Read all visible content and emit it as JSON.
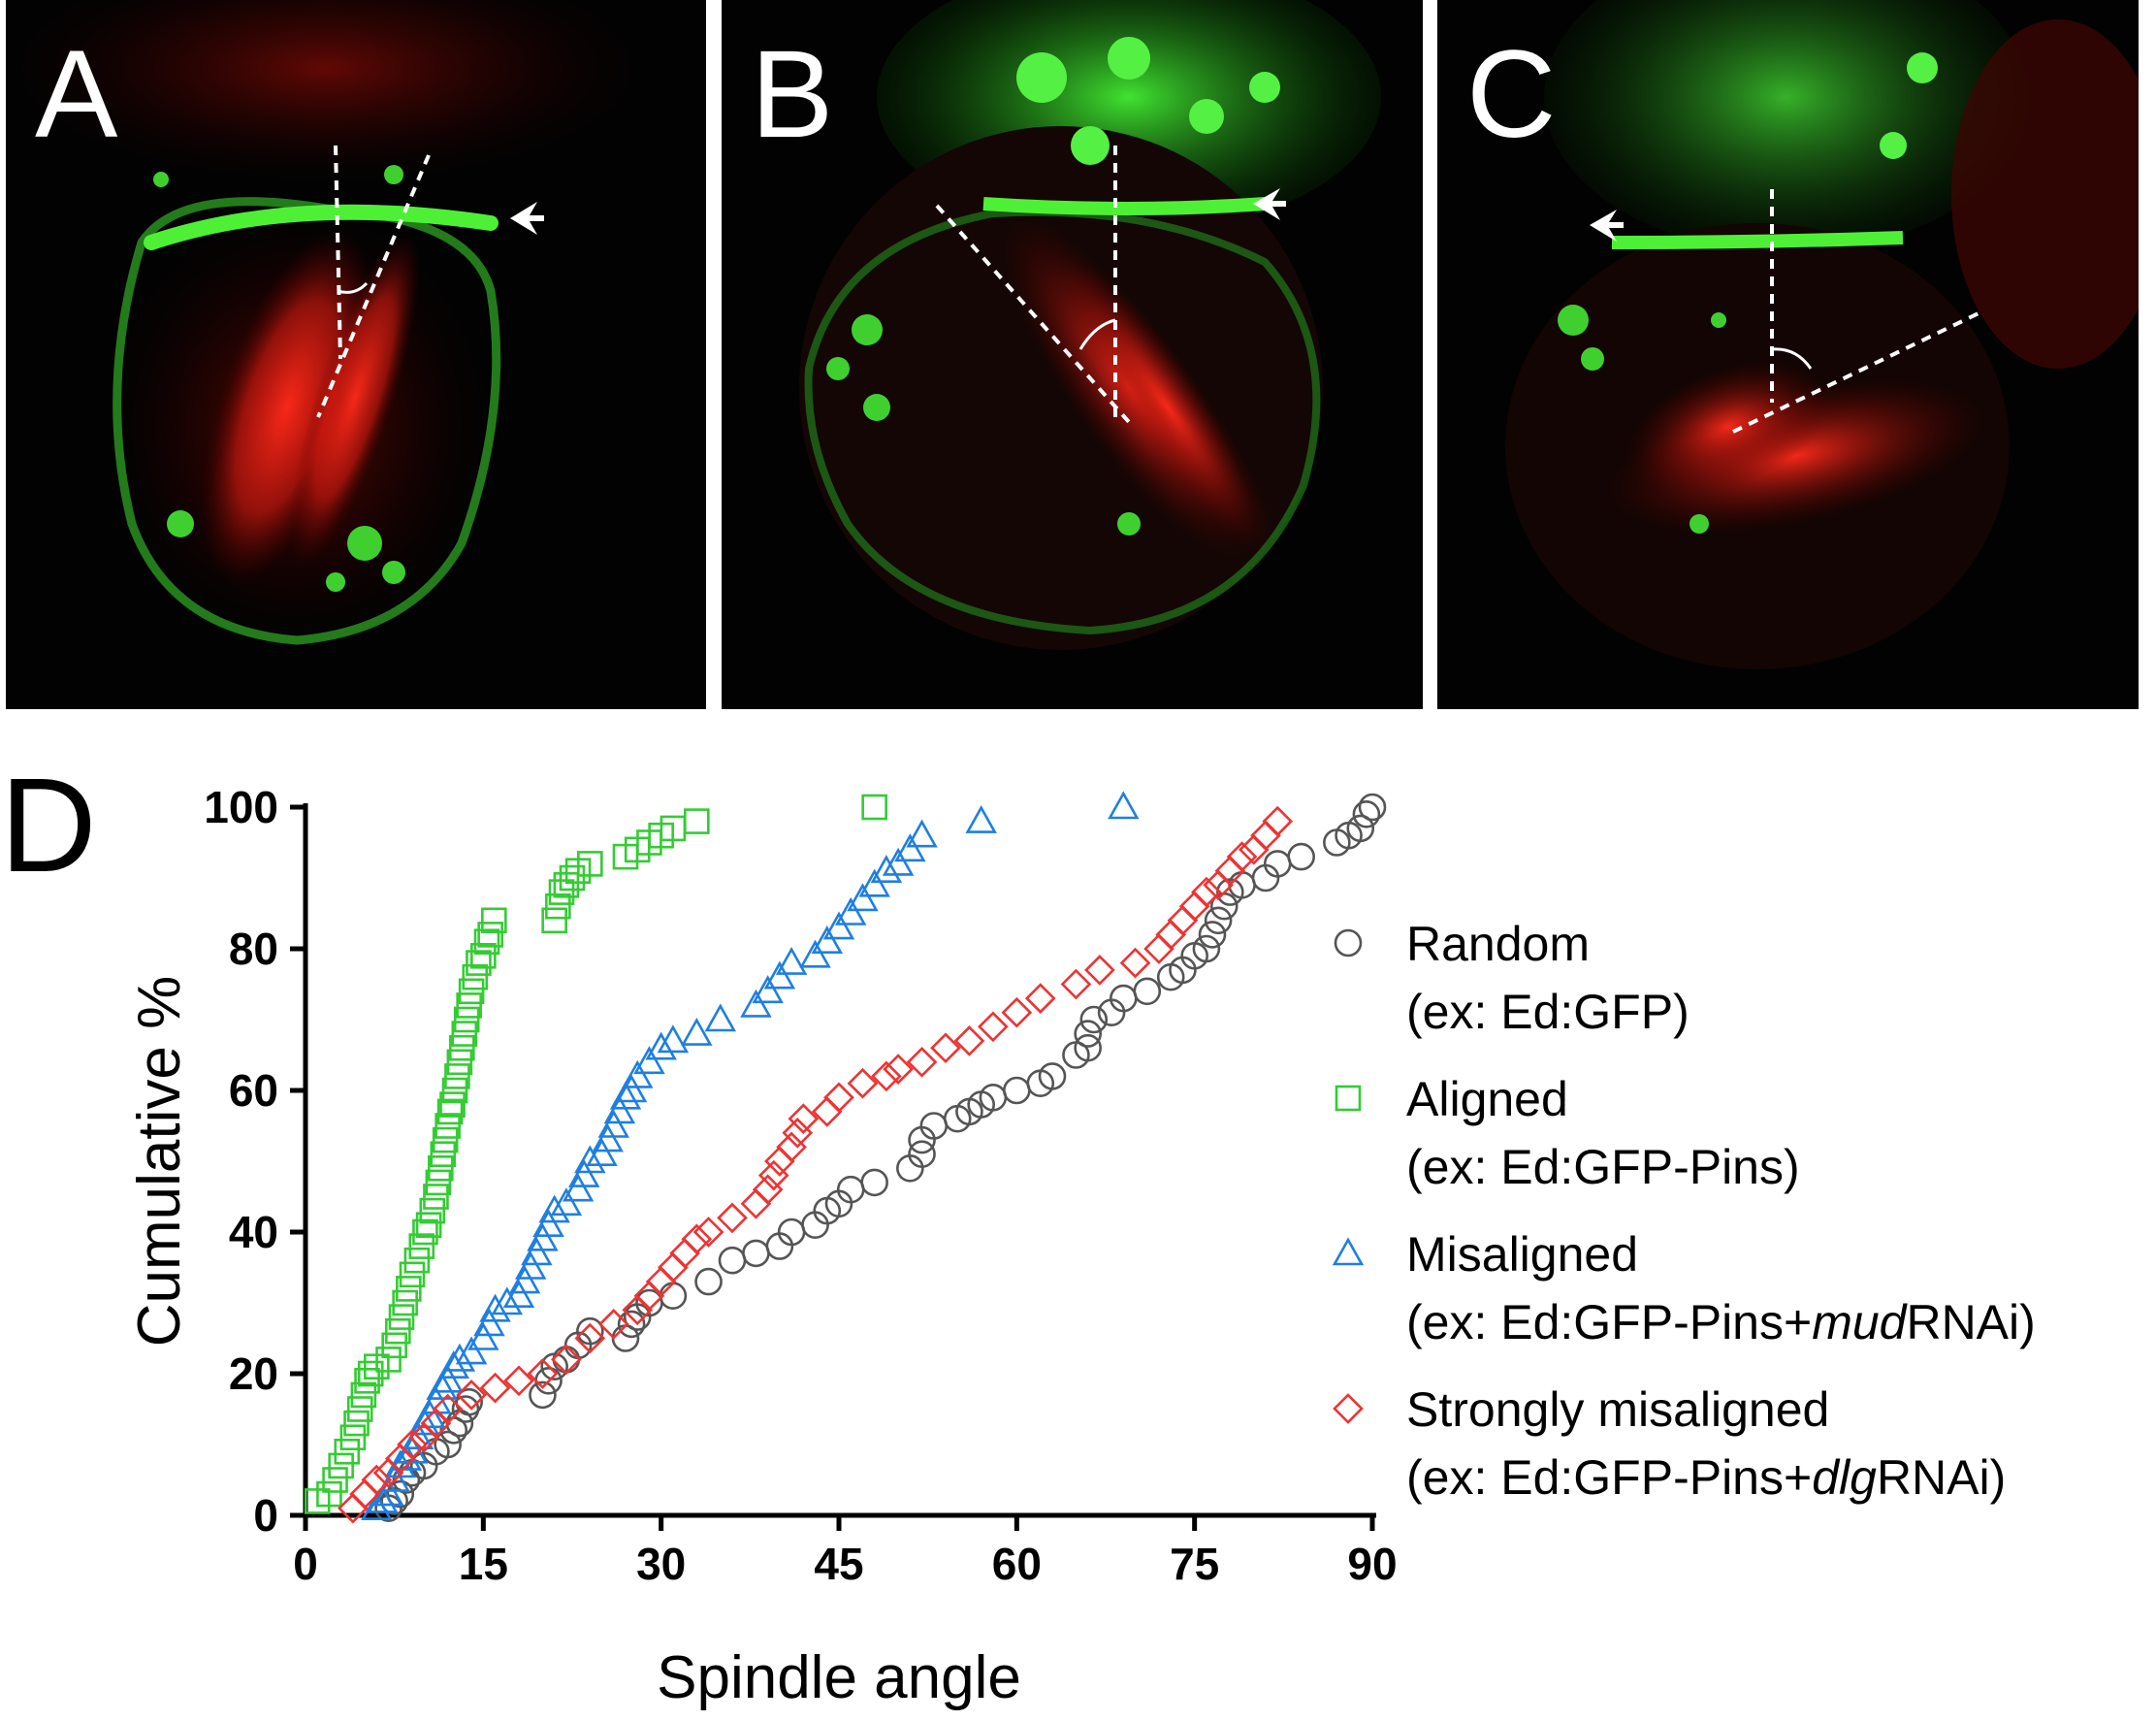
{
  "panels": [
    {
      "label": "A"
    },
    {
      "label": "B"
    },
    {
      "label": "C"
    }
  ],
  "figure_label": "D",
  "colors": {
    "random": "#555555",
    "aligned": "#33cc33",
    "misaligned": "#1f7fe0",
    "strong": "#ee3333"
  },
  "chart_data": {
    "type": "scatter",
    "title": "",
    "xlabel": "Spindle angle",
    "ylabel": "Cumulative %",
    "xlim": [
      0,
      90
    ],
    "ylim": [
      0,
      100
    ],
    "xticks": [
      "0",
      "15",
      "30",
      "45",
      "60",
      "75",
      "90"
    ],
    "yticks": [
      "0",
      "20",
      "40",
      "60",
      "80",
      "100"
    ],
    "grid": false,
    "legend_position": "right",
    "series": [
      {
        "name": "Random",
        "sub": "(ex: Ed:GFP)",
        "marker": "circle",
        "color": "#555555",
        "points": [
          [
            7,
            1
          ],
          [
            7.5,
            2
          ],
          [
            8,
            3
          ],
          [
            8.5,
            5
          ],
          [
            9,
            6
          ],
          [
            10,
            7
          ],
          [
            11,
            9
          ],
          [
            12,
            10
          ],
          [
            12.5,
            12
          ],
          [
            13,
            13
          ],
          [
            13.5,
            15
          ],
          [
            13.8,
            16
          ],
          [
            20,
            17
          ],
          [
            20.5,
            19
          ],
          [
            21,
            21
          ],
          [
            22,
            22
          ],
          [
            23,
            24
          ],
          [
            24,
            26
          ],
          [
            27,
            25
          ],
          [
            27.5,
            27
          ],
          [
            28,
            28
          ],
          [
            29,
            30
          ],
          [
            31,
            31
          ],
          [
            34,
            33
          ],
          [
            36,
            36
          ],
          [
            38,
            37
          ],
          [
            40,
            38
          ],
          [
            41,
            40
          ],
          [
            43,
            41
          ],
          [
            44,
            43
          ],
          [
            45,
            44
          ],
          [
            46,
            46
          ],
          [
            48,
            47
          ],
          [
            51,
            49
          ],
          [
            52,
            51
          ],
          [
            52,
            53
          ],
          [
            53,
            55
          ],
          [
            55,
            56
          ],
          [
            56,
            57
          ],
          [
            57,
            58
          ],
          [
            58,
            59
          ],
          [
            60,
            60
          ],
          [
            62,
            61
          ],
          [
            63,
            62
          ],
          [
            65,
            65
          ],
          [
            66,
            66
          ],
          [
            66,
            68
          ],
          [
            66.5,
            70
          ],
          [
            68,
            71
          ],
          [
            69,
            73
          ],
          [
            71,
            74
          ],
          [
            73,
            76
          ],
          [
            74,
            77
          ],
          [
            75,
            79
          ],
          [
            76,
            80
          ],
          [
            76.5,
            82
          ],
          [
            77,
            84
          ],
          [
            77.5,
            86
          ],
          [
            78,
            88
          ],
          [
            79,
            89
          ],
          [
            81,
            90
          ],
          [
            82,
            92
          ],
          [
            84,
            93
          ],
          [
            87,
            95
          ],
          [
            88,
            96
          ],
          [
            89,
            97
          ],
          [
            89.5,
            99
          ],
          [
            90,
            100
          ]
        ]
      },
      {
        "name": "Aligned",
        "sub": "(ex: Ed:GFP-Pins)",
        "marker": "square",
        "color": "#33cc33",
        "points": [
          [
            1,
            2
          ],
          [
            2,
            3
          ],
          [
            2.5,
            5
          ],
          [
            3,
            7
          ],
          [
            3.5,
            9
          ],
          [
            4,
            11
          ],
          [
            4.3,
            13
          ],
          [
            4.6,
            15
          ],
          [
            4.9,
            17
          ],
          [
            5.2,
            19
          ],
          [
            5.5,
            20
          ],
          [
            6,
            21
          ],
          [
            7,
            22
          ],
          [
            7.5,
            24
          ],
          [
            7.8,
            26
          ],
          [
            8.1,
            28
          ],
          [
            8.4,
            30
          ],
          [
            8.7,
            32
          ],
          [
            9,
            34
          ],
          [
            9.4,
            36
          ],
          [
            9.8,
            38
          ],
          [
            10.1,
            40
          ],
          [
            10.4,
            41
          ],
          [
            10.7,
            43
          ],
          [
            11,
            45
          ],
          [
            11.2,
            47
          ],
          [
            11.4,
            49
          ],
          [
            11.6,
            51
          ],
          [
            11.8,
            53
          ],
          [
            12,
            55
          ],
          [
            12.2,
            57
          ],
          [
            12.4,
            58
          ],
          [
            12.6,
            60
          ],
          [
            12.8,
            62
          ],
          [
            13,
            64
          ],
          [
            13.2,
            66
          ],
          [
            13.4,
            68
          ],
          [
            13.6,
            70
          ],
          [
            13.8,
            72
          ],
          [
            14,
            74
          ],
          [
            14.3,
            76
          ],
          [
            14.6,
            78
          ],
          [
            15,
            79
          ],
          [
            15.3,
            81
          ],
          [
            15.6,
            82
          ],
          [
            15.9,
            84
          ],
          [
            21,
            84
          ],
          [
            21.3,
            86
          ],
          [
            21.6,
            88
          ],
          [
            22,
            89
          ],
          [
            22.5,
            90
          ],
          [
            23,
            91
          ],
          [
            24,
            92
          ],
          [
            27,
            93
          ],
          [
            28,
            94
          ],
          [
            29,
            95
          ],
          [
            30,
            96
          ],
          [
            31,
            97
          ],
          [
            33,
            98
          ],
          [
            48,
            100
          ]
        ]
      },
      {
        "name": "Misaligned",
        "sub_pre": "(ex: Ed:GFP-Pins+",
        "sub_italic": "mud",
        "sub_post": "RNAi)",
        "marker": "triangle",
        "color": "#1f7fe0",
        "points": [
          [
            6,
            1
          ],
          [
            6.5,
            2
          ],
          [
            7,
            3
          ],
          [
            7.5,
            5
          ],
          [
            8,
            7
          ],
          [
            8.5,
            8
          ],
          [
            9,
            9
          ],
          [
            9.5,
            11
          ],
          [
            10,
            13
          ],
          [
            10.5,
            14
          ],
          [
            11,
            16
          ],
          [
            11.5,
            18
          ],
          [
            12,
            19
          ],
          [
            12.5,
            21
          ],
          [
            13,
            22
          ],
          [
            14,
            23
          ],
          [
            15,
            25
          ],
          [
            15.5,
            27
          ],
          [
            16,
            29
          ],
          [
            17,
            30
          ],
          [
            18,
            31
          ],
          [
            18.5,
            33
          ],
          [
            19,
            35
          ],
          [
            19.5,
            37
          ],
          [
            20,
            39
          ],
          [
            20.5,
            41
          ],
          [
            21,
            43
          ],
          [
            22,
            44
          ],
          [
            23,
            46
          ],
          [
            23.5,
            48
          ],
          [
            24,
            50
          ],
          [
            25,
            51
          ],
          [
            25.5,
            53
          ],
          [
            26,
            55
          ],
          [
            26.5,
            57
          ],
          [
            27,
            59
          ],
          [
            27.5,
            60
          ],
          [
            28,
            62
          ],
          [
            29,
            64
          ],
          [
            30,
            66
          ],
          [
            31,
            67
          ],
          [
            33,
            68
          ],
          [
            35,
            70
          ],
          [
            38,
            72
          ],
          [
            39,
            74
          ],
          [
            40,
            76
          ],
          [
            41,
            78
          ],
          [
            43,
            79
          ],
          [
            44,
            81
          ],
          [
            45,
            83
          ],
          [
            46,
            85
          ],
          [
            47,
            87
          ],
          [
            48,
            89
          ],
          [
            49,
            91
          ],
          [
            50,
            92
          ],
          [
            51,
            94
          ],
          [
            52,
            96
          ],
          [
            57,
            98
          ],
          [
            69,
            100
          ]
        ]
      },
      {
        "name": "Strongly misaligned",
        "sub_pre": "(ex: Ed:GFP-Pins+",
        "sub_italic": "dlg",
        "sub_post": "RNAi)",
        "marker": "diamond",
        "color": "#ee3333",
        "points": [
          [
            4,
            1
          ],
          [
            5,
            3
          ],
          [
            6,
            5
          ],
          [
            7,
            6
          ],
          [
            8,
            8
          ],
          [
            9,
            10
          ],
          [
            10,
            11
          ],
          [
            11,
            13
          ],
          [
            12,
            15
          ],
          [
            14,
            17
          ],
          [
            16,
            18
          ],
          [
            18,
            19
          ],
          [
            20,
            20
          ],
          [
            22,
            22
          ],
          [
            24,
            25
          ],
          [
            26,
            27
          ],
          [
            28,
            29
          ],
          [
            29,
            31
          ],
          [
            30,
            33
          ],
          [
            31,
            35
          ],
          [
            32,
            37
          ],
          [
            33,
            39
          ],
          [
            34,
            40
          ],
          [
            36,
            42
          ],
          [
            38,
            44
          ],
          [
            39,
            46
          ],
          [
            39.5,
            48
          ],
          [
            40,
            50
          ],
          [
            41,
            52
          ],
          [
            41.5,
            54
          ],
          [
            42,
            56
          ],
          [
            44,
            57
          ],
          [
            45,
            59
          ],
          [
            47,
            61
          ],
          [
            49,
            62
          ],
          [
            50,
            63
          ],
          [
            52,
            64
          ],
          [
            54,
            66
          ],
          [
            56,
            67
          ],
          [
            58,
            69
          ],
          [
            60,
            71
          ],
          [
            62,
            73
          ],
          [
            65,
            75
          ],
          [
            67,
            77
          ],
          [
            70,
            78
          ],
          [
            72,
            80
          ],
          [
            73,
            82
          ],
          [
            74,
            84
          ],
          [
            75,
            86
          ],
          [
            76,
            88
          ],
          [
            77,
            89
          ],
          [
            78,
            91
          ],
          [
            79,
            93
          ],
          [
            80,
            94
          ],
          [
            81,
            96
          ],
          [
            82,
            98
          ]
        ]
      }
    ]
  }
}
